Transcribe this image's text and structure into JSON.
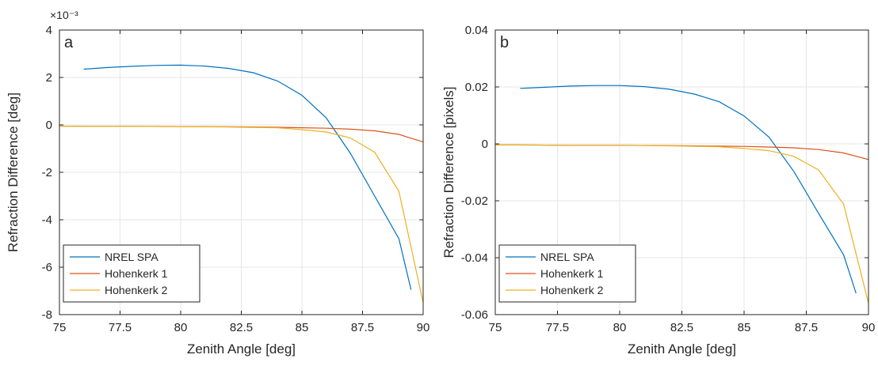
{
  "colors": {
    "series": [
      "#0072BD",
      "#D95319",
      "#EDB120"
    ],
    "grid": "#e6e6e6",
    "axis": "#262626"
  },
  "chart_data": [
    {
      "type": "line",
      "panel_label": "a",
      "xlabel": "Zenith Angle [deg]",
      "ylabel": "Refraction Difference [deg]",
      "y_exponent": "×10⁻³",
      "xlim": [
        75,
        90
      ],
      "ylim": [
        -8,
        4
      ],
      "xticks": [
        75,
        77.5,
        80,
        82.5,
        85,
        87.5,
        90
      ],
      "xtick_labels": [
        "75",
        "77.5",
        "80",
        "82.5",
        "85",
        "87.5",
        "90"
      ],
      "yticks": [
        4,
        2,
        0,
        -2,
        -4,
        -6,
        -8
      ],
      "ytick_labels": [
        "4",
        "2",
        "0",
        "-2",
        "-4",
        "-6",
        "-8"
      ],
      "grid": true,
      "legend_position": "bottom-left",
      "series": [
        {
          "name": "NREL SPA",
          "x": [
            76,
            77,
            78,
            79,
            80,
            81,
            82,
            83,
            84,
            85,
            86,
            87,
            88,
            89,
            89.5
          ],
          "y": [
            2.35,
            2.42,
            2.47,
            2.51,
            2.52,
            2.48,
            2.38,
            2.2,
            1.85,
            1.25,
            0.3,
            -1.2,
            -3.0,
            -4.8,
            -6.95
          ]
        },
        {
          "name": "Hohenkerk 1",
          "x": [
            75,
            76,
            78,
            80,
            82,
            84,
            85,
            86,
            87,
            88,
            89,
            90
          ],
          "y": [
            -0.05,
            -0.06,
            -0.06,
            -0.07,
            -0.08,
            -0.1,
            -0.12,
            -0.14,
            -0.18,
            -0.25,
            -0.4,
            -0.72
          ]
        },
        {
          "name": "Hohenkerk 2",
          "x": [
            75,
            76,
            78,
            80,
            82,
            84,
            85,
            86,
            87,
            88,
            89,
            90
          ],
          "y": [
            -0.05,
            -0.06,
            -0.06,
            -0.07,
            -0.09,
            -0.12,
            -0.2,
            -0.3,
            -0.55,
            -1.15,
            -2.8,
            -7.5
          ]
        }
      ]
    },
    {
      "type": "line",
      "panel_label": "b",
      "xlabel": "Zenith Angle [deg]",
      "ylabel": "Refraction Difference [pixels]",
      "xlim": [
        75,
        90
      ],
      "ylim": [
        -0.06,
        0.04
      ],
      "xticks": [
        75,
        77.5,
        80,
        82.5,
        85,
        87.5,
        90
      ],
      "xtick_labels": [
        "75",
        "77.5",
        "80",
        "82.5",
        "85",
        "87.5",
        "90"
      ],
      "yticks": [
        0.04,
        0.02,
        0,
        -0.02,
        -0.04,
        -0.06
      ],
      "ytick_labels": [
        "0.04",
        "0.02",
        "0",
        "-0.02",
        "-0.04",
        "-0.06"
      ],
      "grid": true,
      "legend_position": "bottom-left",
      "series": [
        {
          "name": "NREL SPA",
          "x": [
            76,
            77,
            78,
            79,
            80,
            81,
            82,
            83,
            84,
            85,
            86,
            87,
            88,
            89,
            89.5
          ],
          "y": [
            0.0195,
            0.0199,
            0.0203,
            0.0205,
            0.0205,
            0.0201,
            0.0192,
            0.0175,
            0.0148,
            0.0098,
            0.0024,
            -0.0097,
            -0.0245,
            -0.039,
            -0.0525
          ]
        },
        {
          "name": "Hohenkerk 1",
          "x": [
            75,
            76,
            78,
            80,
            82,
            84,
            85,
            86,
            87,
            88,
            89,
            90
          ],
          "y": [
            -0.0004,
            -0.0004,
            -0.0005,
            -0.0005,
            -0.0006,
            -0.0008,
            -0.0009,
            -0.0011,
            -0.0014,
            -0.002,
            -0.0032,
            -0.0055
          ]
        },
        {
          "name": "Hohenkerk 2",
          "x": [
            75,
            76,
            78,
            80,
            82,
            84,
            85,
            86,
            87,
            88,
            89,
            90
          ],
          "y": [
            -0.0004,
            -0.0004,
            -0.0005,
            -0.0005,
            -0.0007,
            -0.001,
            -0.0016,
            -0.0024,
            -0.0044,
            -0.0092,
            -0.0212,
            -0.056
          ]
        }
      ]
    }
  ]
}
